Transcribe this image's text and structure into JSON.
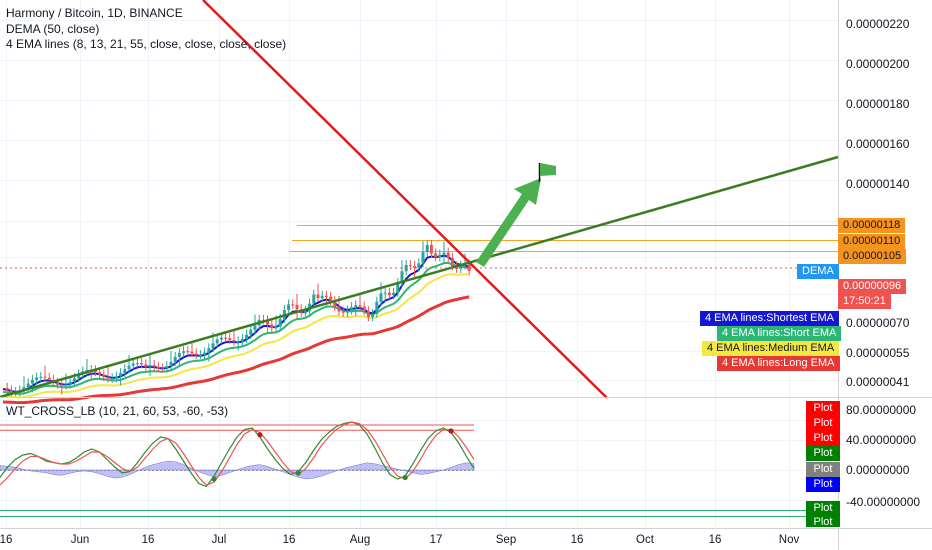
{
  "legend": {
    "symbol": "Harmony / Bitcoin, 1D, BINANCE",
    "dema": "DEMA (50, close)",
    "ema4": "4 EMA lines (8, 13, 21, 55, close, close, close, close)",
    "osc": "WT_CROSS_LB (10, 21, 60, 53, -60, -53)"
  },
  "colors": {
    "up": "#26a69a",
    "down": "#ef5350",
    "ema_shortest": "#1515d4",
    "ema_short": "#2bb673",
    "ema_medium": "#f5e642",
    "ema_long": "#e53935",
    "trend_red": "#e01b1b",
    "trend_green": "#3a7d1e",
    "arrow": "#4caf50",
    "level": "#f5a623"
  },
  "price_axis": {
    "ticks": [
      "0.00000220",
      "0.00000200",
      "0.00000180",
      "0.00000160",
      "0.00000140",
      "0.00000070",
      "0.00000055",
      "0.00000041"
    ]
  },
  "osc_axis": {
    "ticks": [
      "80.00000000",
      "40.00000000",
      "0.00000000",
      "-40.00000000"
    ]
  },
  "x_axis": {
    "ticks": [
      "16",
      "Jun",
      "16",
      "Jul",
      "16",
      "Aug",
      "17",
      "Sep",
      "16",
      "Oct",
      "16",
      "Nov"
    ]
  },
  "price_tags": {
    "l118": "0.00000118",
    "l110": "0.00000110",
    "l105": "0.00000105",
    "dema": "DEMA",
    "last": "0.00000096",
    "countdown": "17:50:21"
  },
  "ema_tags": {
    "shortest": "4 EMA lines:Shortest EMA",
    "short": "4 EMA lines:Short EMA",
    "medium": "4 EMA lines:Medium EMA",
    "long": "4 EMA lines:Long EMA"
  },
  "plot_tags": [
    "Plot",
    "Plot",
    "Plot",
    "Plot",
    "Plot",
    "Plot",
    "Plot",
    "Plot"
  ],
  "chart_data": [
    {
      "type": "candlestick",
      "title": "Harmony / Bitcoin, 1D, BINANCE",
      "x": [
        "16",
        "Jun",
        "16",
        "Jul",
        "16",
        "Aug",
        "17",
        "Sep",
        "16",
        "Oct",
        "16",
        "Nov"
      ],
      "ylim": [
        3.5e-07,
        2.3e-06
      ],
      "series": [
        {
          "name": "DEMA (50, close)",
          "last": 9.6e-07
        },
        {
          "name": "4 EMA lines:Shortest EMA"
        },
        {
          "name": "4 EMA lines:Short EMA"
        },
        {
          "name": "4 EMA lines:Medium EMA"
        },
        {
          "name": "4 EMA lines:Long EMA"
        }
      ],
      "levels": [
        1.18e-06,
        1.1e-06,
        1.05e-06
      ],
      "annotations": [
        "descending red trendline",
        "ascending green trendline",
        "green arrow to flag"
      ],
      "grid": true
    },
    {
      "type": "line",
      "title": "WT_CROSS_LB (10, 21, 60, 53, -60, -53)",
      "ylim": [
        -40,
        80
      ],
      "series": [
        {
          "values": [
            -10,
            4,
            14,
            20,
            22,
            18,
            12,
            10,
            8,
            10,
            16,
            24,
            28,
            24,
            14,
            4,
            -4,
            -2,
            10,
            24,
            36,
            44,
            42,
            28,
            12,
            -4,
            -18,
            -22,
            -8,
            10,
            28,
            44,
            54,
            56,
            44,
            28,
            14,
            2,
            -6,
            -2,
            10,
            26,
            40,
            50,
            58,
            62,
            64,
            60,
            48,
            30,
            10,
            -6,
            -12,
            -8,
            8,
            26,
            42,
            52,
            56,
            50,
            36,
            18,
            2
          ]
        },
        {
          "values": [
            -20,
            -10,
            2,
            12,
            18,
            18,
            14,
            10,
            8,
            8,
            12,
            18,
            24,
            24,
            18,
            10,
            2,
            -2,
            4,
            16,
            28,
            38,
            42,
            36,
            22,
            6,
            -10,
            -20,
            -16,
            -2,
            16,
            34,
            48,
            54,
            50,
            38,
            24,
            10,
            -2,
            -6,
            2,
            16,
            32,
            44,
            54,
            60,
            64,
            62,
            54,
            40,
            22,
            4,
            -8,
            -12,
            -2,
            14,
            32,
            46,
            54,
            54,
            44,
            30,
            14
          ]
        }
      ],
      "hist": [
        -5,
        -4,
        -3,
        -1,
        1,
        2,
        3,
        5,
        6,
        4,
        2,
        1,
        2,
        4,
        7,
        9,
        8,
        5,
        1,
        -3,
        -6,
        -8,
        -10,
        -9,
        -6,
        -2,
        2,
        5,
        8,
        6,
        3,
        0,
        -3,
        -5,
        -6,
        -4,
        -1,
        2,
        5,
        8,
        10,
        9,
        7,
        4,
        1,
        -2,
        -4,
        -6,
        -8,
        -7,
        -5,
        -3,
        -1,
        1,
        3,
        5,
        4,
        2,
        0,
        -3,
        -6,
        -8,
        -7
      ]
    }
  ]
}
